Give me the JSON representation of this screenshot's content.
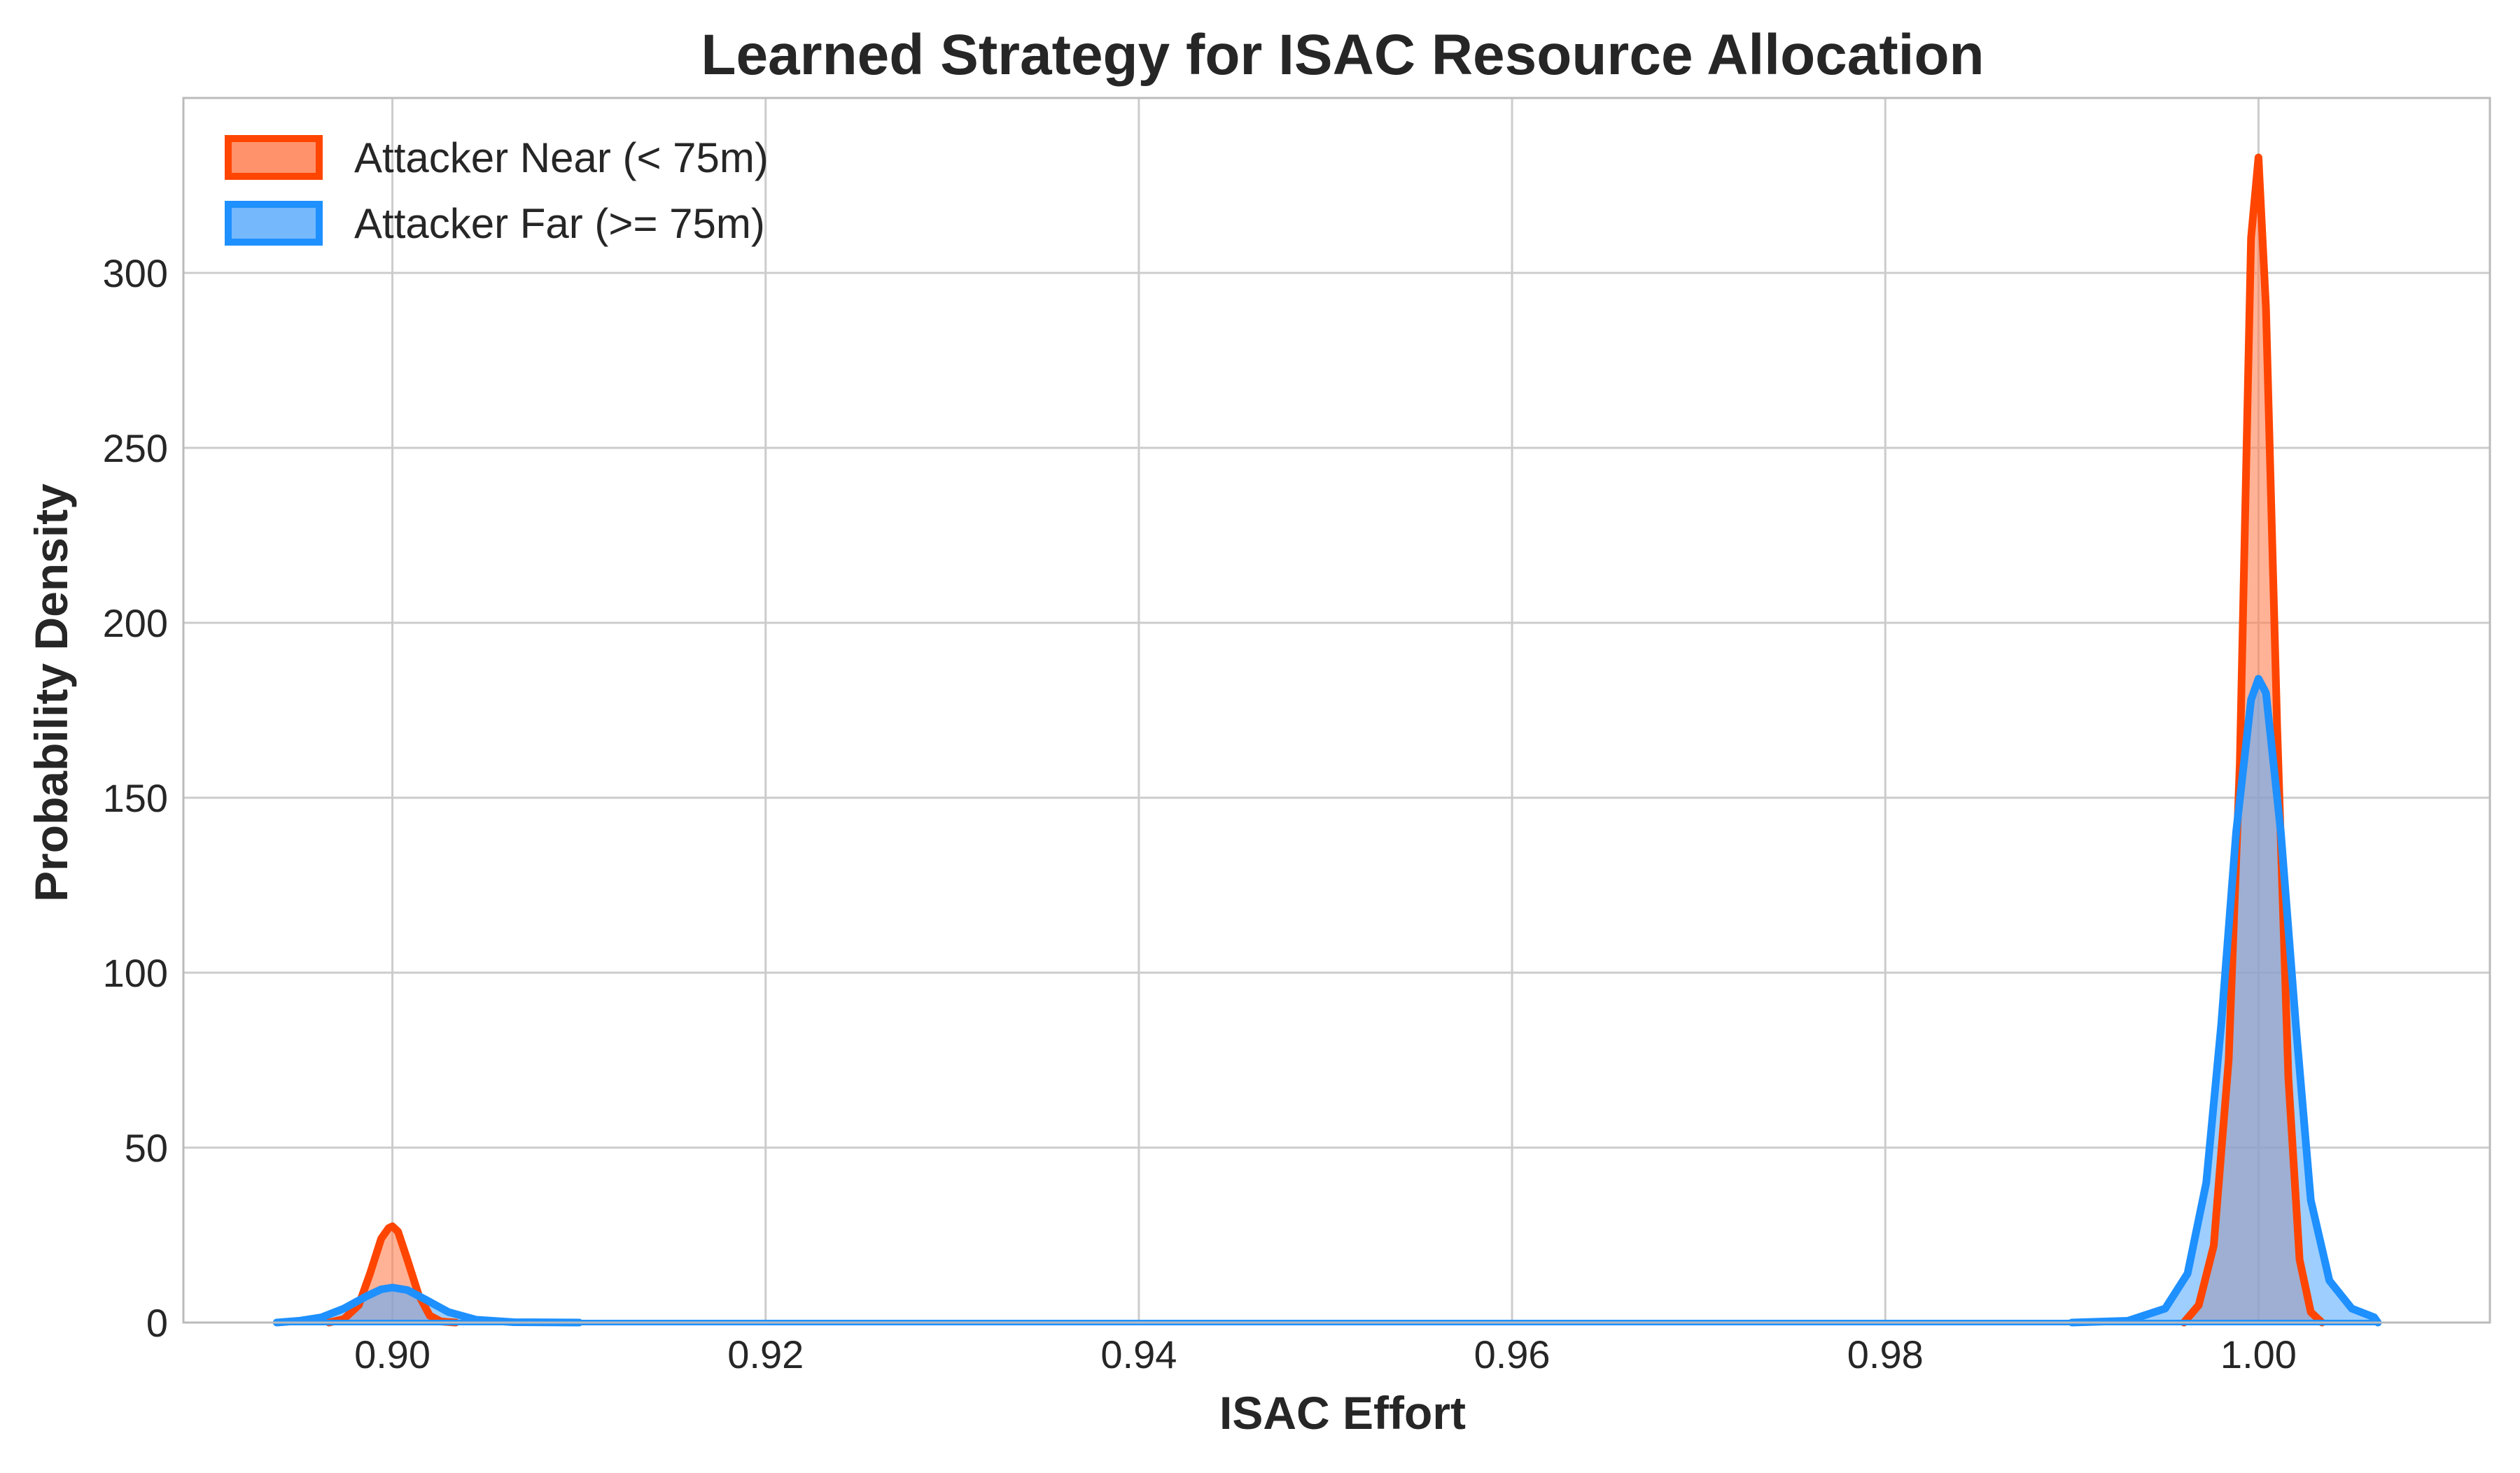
{
  "chart_data": {
    "type": "area",
    "title": "Learned Strategy for ISAC Resource Allocation",
    "xlabel": "ISAC Effort",
    "ylabel": "Probability Density",
    "xlim": [
      0.8888,
      1.0124
    ],
    "ylim": [
      0,
      350
    ],
    "x_ticks": [
      0.9,
      0.92,
      0.94,
      0.96,
      0.98,
      1.0
    ],
    "x_tick_labels": [
      "0.90",
      "0.92",
      "0.94",
      "0.96",
      "0.98",
      "1.00"
    ],
    "y_ticks": [
      0,
      50,
      100,
      150,
      200,
      250,
      300
    ],
    "y_tick_labels": [
      "0",
      "50",
      "100",
      "150",
      "200",
      "250",
      "300"
    ],
    "grid": true,
    "legend_position": "top-left",
    "series": [
      {
        "name": "Attacker Near (< 75m)",
        "line_color": "#FF4500",
        "fill_color": "#FF7F50",
        "x": [
          0.8966,
          0.8974,
          0.8982,
          0.8988,
          0.8994,
          0.8998,
          0.9,
          0.9003,
          0.9008,
          0.9014,
          0.902,
          0.9026,
          0.9034,
          0.996,
          0.9968,
          0.9976,
          0.9984,
          0.999,
          0.9996,
          1.0,
          1.0004,
          1.001,
          1.0016,
          1.0022,
          1.0028,
          1.0034
        ],
        "y": [
          0,
          1,
          5,
          14,
          24,
          27,
          27.5,
          26,
          18,
          8,
          2,
          0.3,
          0,
          0,
          5,
          22,
          75,
          160,
          310,
          333,
          290,
          170,
          70,
          18,
          3,
          0
        ]
      },
      {
        "name": "Attacker Far (>= 75m)",
        "line_color": "#1E90FF",
        "fill_color": "#5DADFB",
        "x": [
          0.8938,
          0.895,
          0.8962,
          0.8974,
          0.8986,
          0.8994,
          0.9,
          0.9008,
          0.9018,
          0.903,
          0.9045,
          0.9065,
          0.91,
          0.99,
          0.993,
          0.995,
          0.9962,
          0.9972,
          0.998,
          0.9988,
          0.9996,
          1.0,
          1.0004,
          1.0012,
          1.002,
          1.0028,
          1.0038,
          1.005,
          1.0062,
          1.0064
        ],
        "y": [
          0,
          0.5,
          1.5,
          4,
          7.5,
          9.5,
          10,
          9.3,
          6.5,
          3,
          0.8,
          0.1,
          0,
          0,
          0.5,
          4,
          14,
          40,
          85,
          140,
          178,
          184,
          180,
          140,
          85,
          35,
          12,
          4,
          1.5,
          0
        ]
      }
    ],
    "colors": {
      "background": "#FFFFFF",
      "grid": "#CCCCCC",
      "axis_frame": "#BBBBBB",
      "text": "#262626"
    }
  }
}
